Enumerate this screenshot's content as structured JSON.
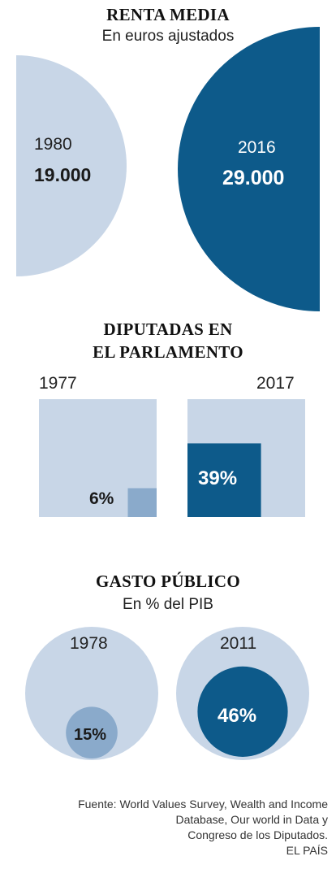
{
  "colors": {
    "light": "#c8d6e7",
    "dark": "#0d5a8a",
    "mid": "#8aaacb"
  },
  "renta": {
    "title": "RENTA MEDIA",
    "subtitle": "En euros ajustados",
    "items": [
      {
        "year": "1980",
        "value_label": "19.000"
      },
      {
        "year": "2016",
        "value_label": "29.000"
      }
    ]
  },
  "diputadas": {
    "title_line1": "DIPUTADAS EN",
    "title_line2": "EL PARLAMENTO",
    "items": [
      {
        "year": "1977",
        "value_label": "6%"
      },
      {
        "year": "2017",
        "value_label": "39%"
      }
    ]
  },
  "gasto": {
    "title": "GASTO PÚBLICO",
    "subtitle": "En % del PIB",
    "items": [
      {
        "year": "1978",
        "value_label": "15%"
      },
      {
        "year": "2011",
        "value_label": "46%"
      }
    ]
  },
  "footer": {
    "line1": "Fuente: World Values Survey, Wealth and Income",
    "line2": "Database, Our world in Data y",
    "line3": "Congreso de los Diputados.",
    "line4": "EL PAÍS"
  },
  "chart_data": [
    {
      "type": "area",
      "title": "RENTA MEDIA",
      "subtitle": "En euros ajustados",
      "categories": [
        "1980",
        "2016"
      ],
      "values": [
        19000,
        29000
      ],
      "unit": "euros ajustados"
    },
    {
      "type": "area",
      "title": "DIPUTADAS EN EL PARLAMENTO",
      "categories": [
        "1977",
        "2017"
      ],
      "values": [
        6,
        39
      ],
      "unit": "%"
    },
    {
      "type": "area",
      "title": "GASTO PÚBLICO",
      "subtitle": "En % del PIB",
      "categories": [
        "1978",
        "2011"
      ],
      "values": [
        15,
        46
      ],
      "unit": "% del PIB"
    }
  ]
}
